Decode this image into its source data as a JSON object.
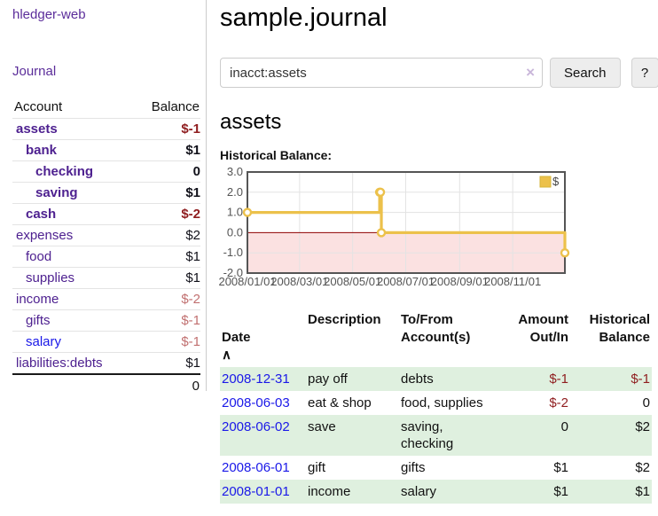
{
  "app": {
    "brand": "hledger-web",
    "nav_journal": "Journal"
  },
  "colors": {
    "link_purple": "#5b2d9a",
    "account_purple": "#4e2190",
    "link_blue": "#1a18e8",
    "neg_strong": "#8f1d1f",
    "neg_soft": "#c17070",
    "stripe_green": "#dff0df",
    "button_bg": "#ededed"
  },
  "sidebar": {
    "accounts_table": {
      "header": {
        "account": "Account",
        "balance": "Balance"
      },
      "rows": [
        {
          "name": "assets",
          "balance": "$-1"
        },
        {
          "name": "bank",
          "balance": "$1"
        },
        {
          "name": "checking",
          "balance": "0"
        },
        {
          "name": "saving",
          "balance": "$1"
        },
        {
          "name": "cash",
          "balance": "$-2"
        },
        {
          "name": "expenses",
          "balance": "$2"
        },
        {
          "name": "food",
          "balance": "$1"
        },
        {
          "name": "supplies",
          "balance": "$1"
        },
        {
          "name": "income",
          "balance": "$-2"
        },
        {
          "name": "gifts",
          "balance": "$-1"
        },
        {
          "name": "salary",
          "balance": "$-1"
        },
        {
          "name": "liabilities:debts",
          "balance": "$1"
        }
      ],
      "total": "0"
    }
  },
  "header": {
    "title": "sample.journal"
  },
  "search": {
    "value": "inacct:assets",
    "clear_icon": "×",
    "button": "Search",
    "help_button": "?"
  },
  "account_page": {
    "title": "assets",
    "chart_label": "Historical Balance:"
  },
  "chart_data": {
    "type": "line",
    "title": "Historical Balance:",
    "series": [
      {
        "name": "$",
        "color": "#ecc14b",
        "step": true,
        "points": [
          [
            "2008-01-01",
            1
          ],
          [
            "2008-06-01",
            2
          ],
          [
            "2008-06-02",
            2
          ],
          [
            "2008-06-03",
            0
          ],
          [
            "2008-12-31",
            -1
          ]
        ]
      }
    ],
    "x_range": [
      "2008-01-01",
      "2008-12-31"
    ],
    "x_ticks": [
      "2008/01/01",
      "2008/03/01",
      "2008/05/01",
      "2008/07/01",
      "2008/09/01",
      "2008/11/01"
    ],
    "y_ticks": [
      3.0,
      2.0,
      1.0,
      0.0,
      -1.0,
      -2.0
    ],
    "ylim": [
      -2,
      3
    ],
    "grid": true,
    "grid_color": "#e3e3e3",
    "border_color": "#555555",
    "negative_fill": "#fbe1e1",
    "zero_line_color": "#8e0000",
    "tick_label_color": "#545454",
    "legend_position": "top-right"
  },
  "register": {
    "sort": {
      "column": "Date",
      "icon": "∧"
    },
    "columns": [
      "Date",
      "Description",
      "To/From\nAccount(s)",
      "Amount\nOut/In",
      "Historical\nBalance"
    ],
    "rows": [
      {
        "date": "2008-12-31",
        "description": "pay off",
        "accounts": "debts",
        "amount": "$-1",
        "balance": "$-1"
      },
      {
        "date": "2008-06-03",
        "description": "eat & shop",
        "accounts": "food, supplies",
        "amount": "$-2",
        "balance": "0"
      },
      {
        "date": "2008-06-02",
        "description": "save",
        "accounts": "saving,\nchecking",
        "amount": "0",
        "balance": "$2"
      },
      {
        "date": "2008-06-01",
        "description": "gift",
        "accounts": "gifts",
        "amount": "$1",
        "balance": "$2"
      },
      {
        "date": "2008-01-01",
        "description": "income",
        "accounts": "salary",
        "amount": "$1",
        "balance": "$1"
      }
    ]
  }
}
